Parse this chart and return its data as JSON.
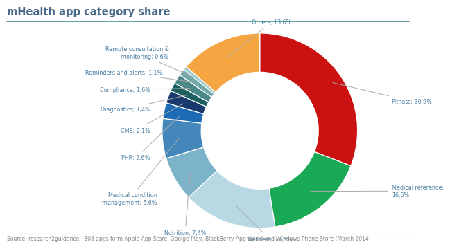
{
  "title": "mHealth app category share",
  "footnote": "Source: research2guidance,  808 apps form Apple App Store, Goolge Play, BlackBerry App World and Windows Phone Store (March 2014)",
  "slices": [
    {
      "label": "Fitness; 30,9%",
      "value": 30.9,
      "color": "#cc1111"
    },
    {
      "label": "Medical reference;\n16,6%",
      "value": 16.6,
      "color": "#1aaa55"
    },
    {
      "label": "Wellness; 15,5%",
      "value": 15.5,
      "color": "#b8d8e4"
    },
    {
      "label": "Nutrition; 7,4%",
      "value": 7.4,
      "color": "#7db3c8"
    },
    {
      "label": "Medical condition\nmanagement; 6,6%",
      "value": 6.6,
      "color": "#4488bb"
    },
    {
      "label": "PHR; 2,6%",
      "value": 2.6,
      "color": "#1e6bb5"
    },
    {
      "label": "CME; 2,1%",
      "value": 2.1,
      "color": "#1a3a6e"
    },
    {
      "label": "Diagnostics; 1,4%",
      "value": 1.4,
      "color": "#1d6060"
    },
    {
      "label": "Compliance; 1,6%",
      "value": 1.6,
      "color": "#4d8888"
    },
    {
      "label": "Reminders and alerts; 1,1%",
      "value": 1.1,
      "color": "#70a8a8"
    },
    {
      "label": "Remote consultation &\nmonitoring; 0,6%",
      "value": 0.6,
      "color": "#99cccc"
    },
    {
      "label": "Others; 13,6%",
      "value": 13.6,
      "color": "#f5a542"
    }
  ],
  "title_color": "#4a6a8a",
  "label_color": "#4a7fa5",
  "footnote_color": "#888888",
  "line_color": "#aaaaaa",
  "title_line_color": "#4a9090",
  "background_color": "#ffffff"
}
